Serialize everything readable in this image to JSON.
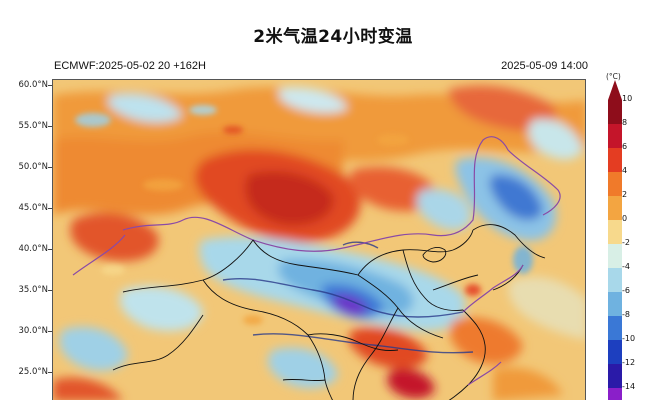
{
  "title": "2米气温24小时变温",
  "model_run": "ECMWF:2025-05-02 20 +162H",
  "valid_time": "2025-05-09 14:00",
  "lat_labels": [
    "60.0°N",
    "55.0°N",
    "50.0°N",
    "45.0°N",
    "40.0°N",
    "35.0°N",
    "30.0°N",
    "25.0°N"
  ],
  "colorbar": {
    "unit": "(°C)",
    "labels": [
      "10",
      "8",
      "6",
      "4",
      "2",
      "0",
      "-2",
      "-4",
      "-6",
      "-8",
      "-10",
      "-12",
      "-14"
    ],
    "colors": [
      "#8e0d1b",
      "#c4152a",
      "#e43d22",
      "#f07a2a",
      "#f3a541",
      "#f7d98c",
      "#d8efe6",
      "#a8d8ea",
      "#6fb2e0",
      "#3a78d6",
      "#1d3fbf",
      "#2a1aa8",
      "#8a1fc9"
    ]
  }
}
